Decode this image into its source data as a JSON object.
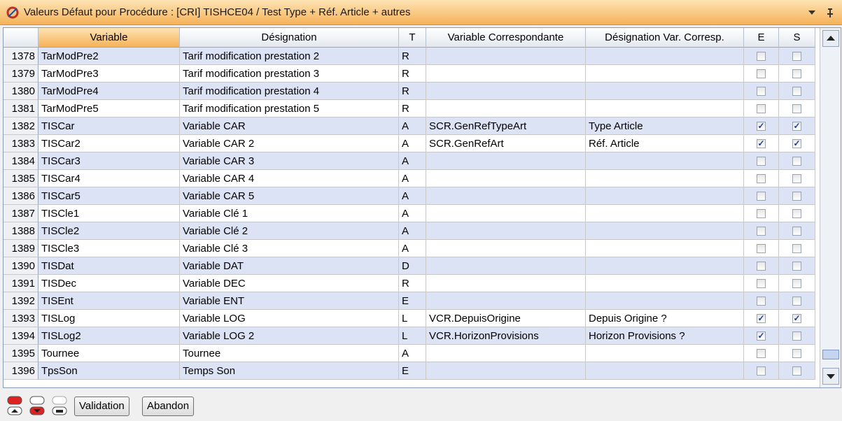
{
  "header": {
    "title": "Valeurs Défaut pour Procédure : [CRI] TISHCE04 / Test Type + Réf. Article + autres"
  },
  "table": {
    "columns": [
      "Variable",
      "Désignation",
      "T",
      "Variable Correspondante",
      "Désignation Var. Corresp.",
      "E",
      "S"
    ],
    "rows": [
      {
        "n": 1378,
        "variable": "TarModPre2",
        "designation": "Tarif modification prestation 2",
        "t": "R"
      },
      {
        "n": 1379,
        "variable": "TarModPre3",
        "designation": "Tarif modification prestation 3",
        "t": "R"
      },
      {
        "n": 1380,
        "variable": "TarModPre4",
        "designation": "Tarif modification prestation 4",
        "t": "R"
      },
      {
        "n": 1381,
        "variable": "TarModPre5",
        "designation": "Tarif modification prestation 5",
        "t": "R"
      },
      {
        "n": 1382,
        "variable": "TISCar",
        "designation": "Variable CAR",
        "t": "A",
        "var_corresp": "SCR.GenRefTypeArt",
        "desig_corresp": "Type Article",
        "e": true,
        "s": true
      },
      {
        "n": 1383,
        "variable": "TISCar2",
        "designation": "Variable CAR 2",
        "t": "A",
        "var_corresp": "SCR.GenRefArt",
        "desig_corresp": "Réf. Article",
        "e": true,
        "s": true
      },
      {
        "n": 1384,
        "variable": "TISCar3",
        "designation": "Variable CAR 3",
        "t": "A"
      },
      {
        "n": 1385,
        "variable": "TISCar4",
        "designation": "Variable CAR 4",
        "t": "A"
      },
      {
        "n": 1386,
        "variable": "TISCar5",
        "designation": "Variable CAR 5",
        "t": "A"
      },
      {
        "n": 1387,
        "variable": "TISCle1",
        "designation": "Variable Clé 1",
        "t": "A"
      },
      {
        "n": 1388,
        "variable": "TISCle2",
        "designation": "Variable Clé 2",
        "t": "A"
      },
      {
        "n": 1389,
        "variable": "TISCle3",
        "designation": "Variable Clé 3",
        "t": "A"
      },
      {
        "n": 1390,
        "variable": "TISDat",
        "designation": "Variable DAT",
        "t": "D"
      },
      {
        "n": 1391,
        "variable": "TISDec",
        "designation": "Variable DEC",
        "t": "R"
      },
      {
        "n": 1392,
        "variable": "TISEnt",
        "designation": "Variable ENT",
        "t": "E"
      },
      {
        "n": 1393,
        "variable": "TISLog",
        "designation": "Variable LOG",
        "t": "L",
        "var_corresp": "VCR.DepuisOrigine",
        "desig_corresp": "Depuis Origine ?",
        "e": true,
        "s": true
      },
      {
        "n": 1394,
        "variable": "TISLog2",
        "designation": "Variable LOG 2",
        "t": "L",
        "var_corresp": "VCR.HorizonProvisions",
        "desig_corresp": "Horizon Provisions ?",
        "e": true
      },
      {
        "n": 1395,
        "variable": "Tournee",
        "designation": "Tournee",
        "t": "A"
      },
      {
        "n": 1396,
        "variable": "TpsSon",
        "designation": "Temps Son",
        "t": "E"
      }
    ]
  },
  "toolbar": {
    "buttons": [
      "Validation",
      "Abandon"
    ]
  }
}
